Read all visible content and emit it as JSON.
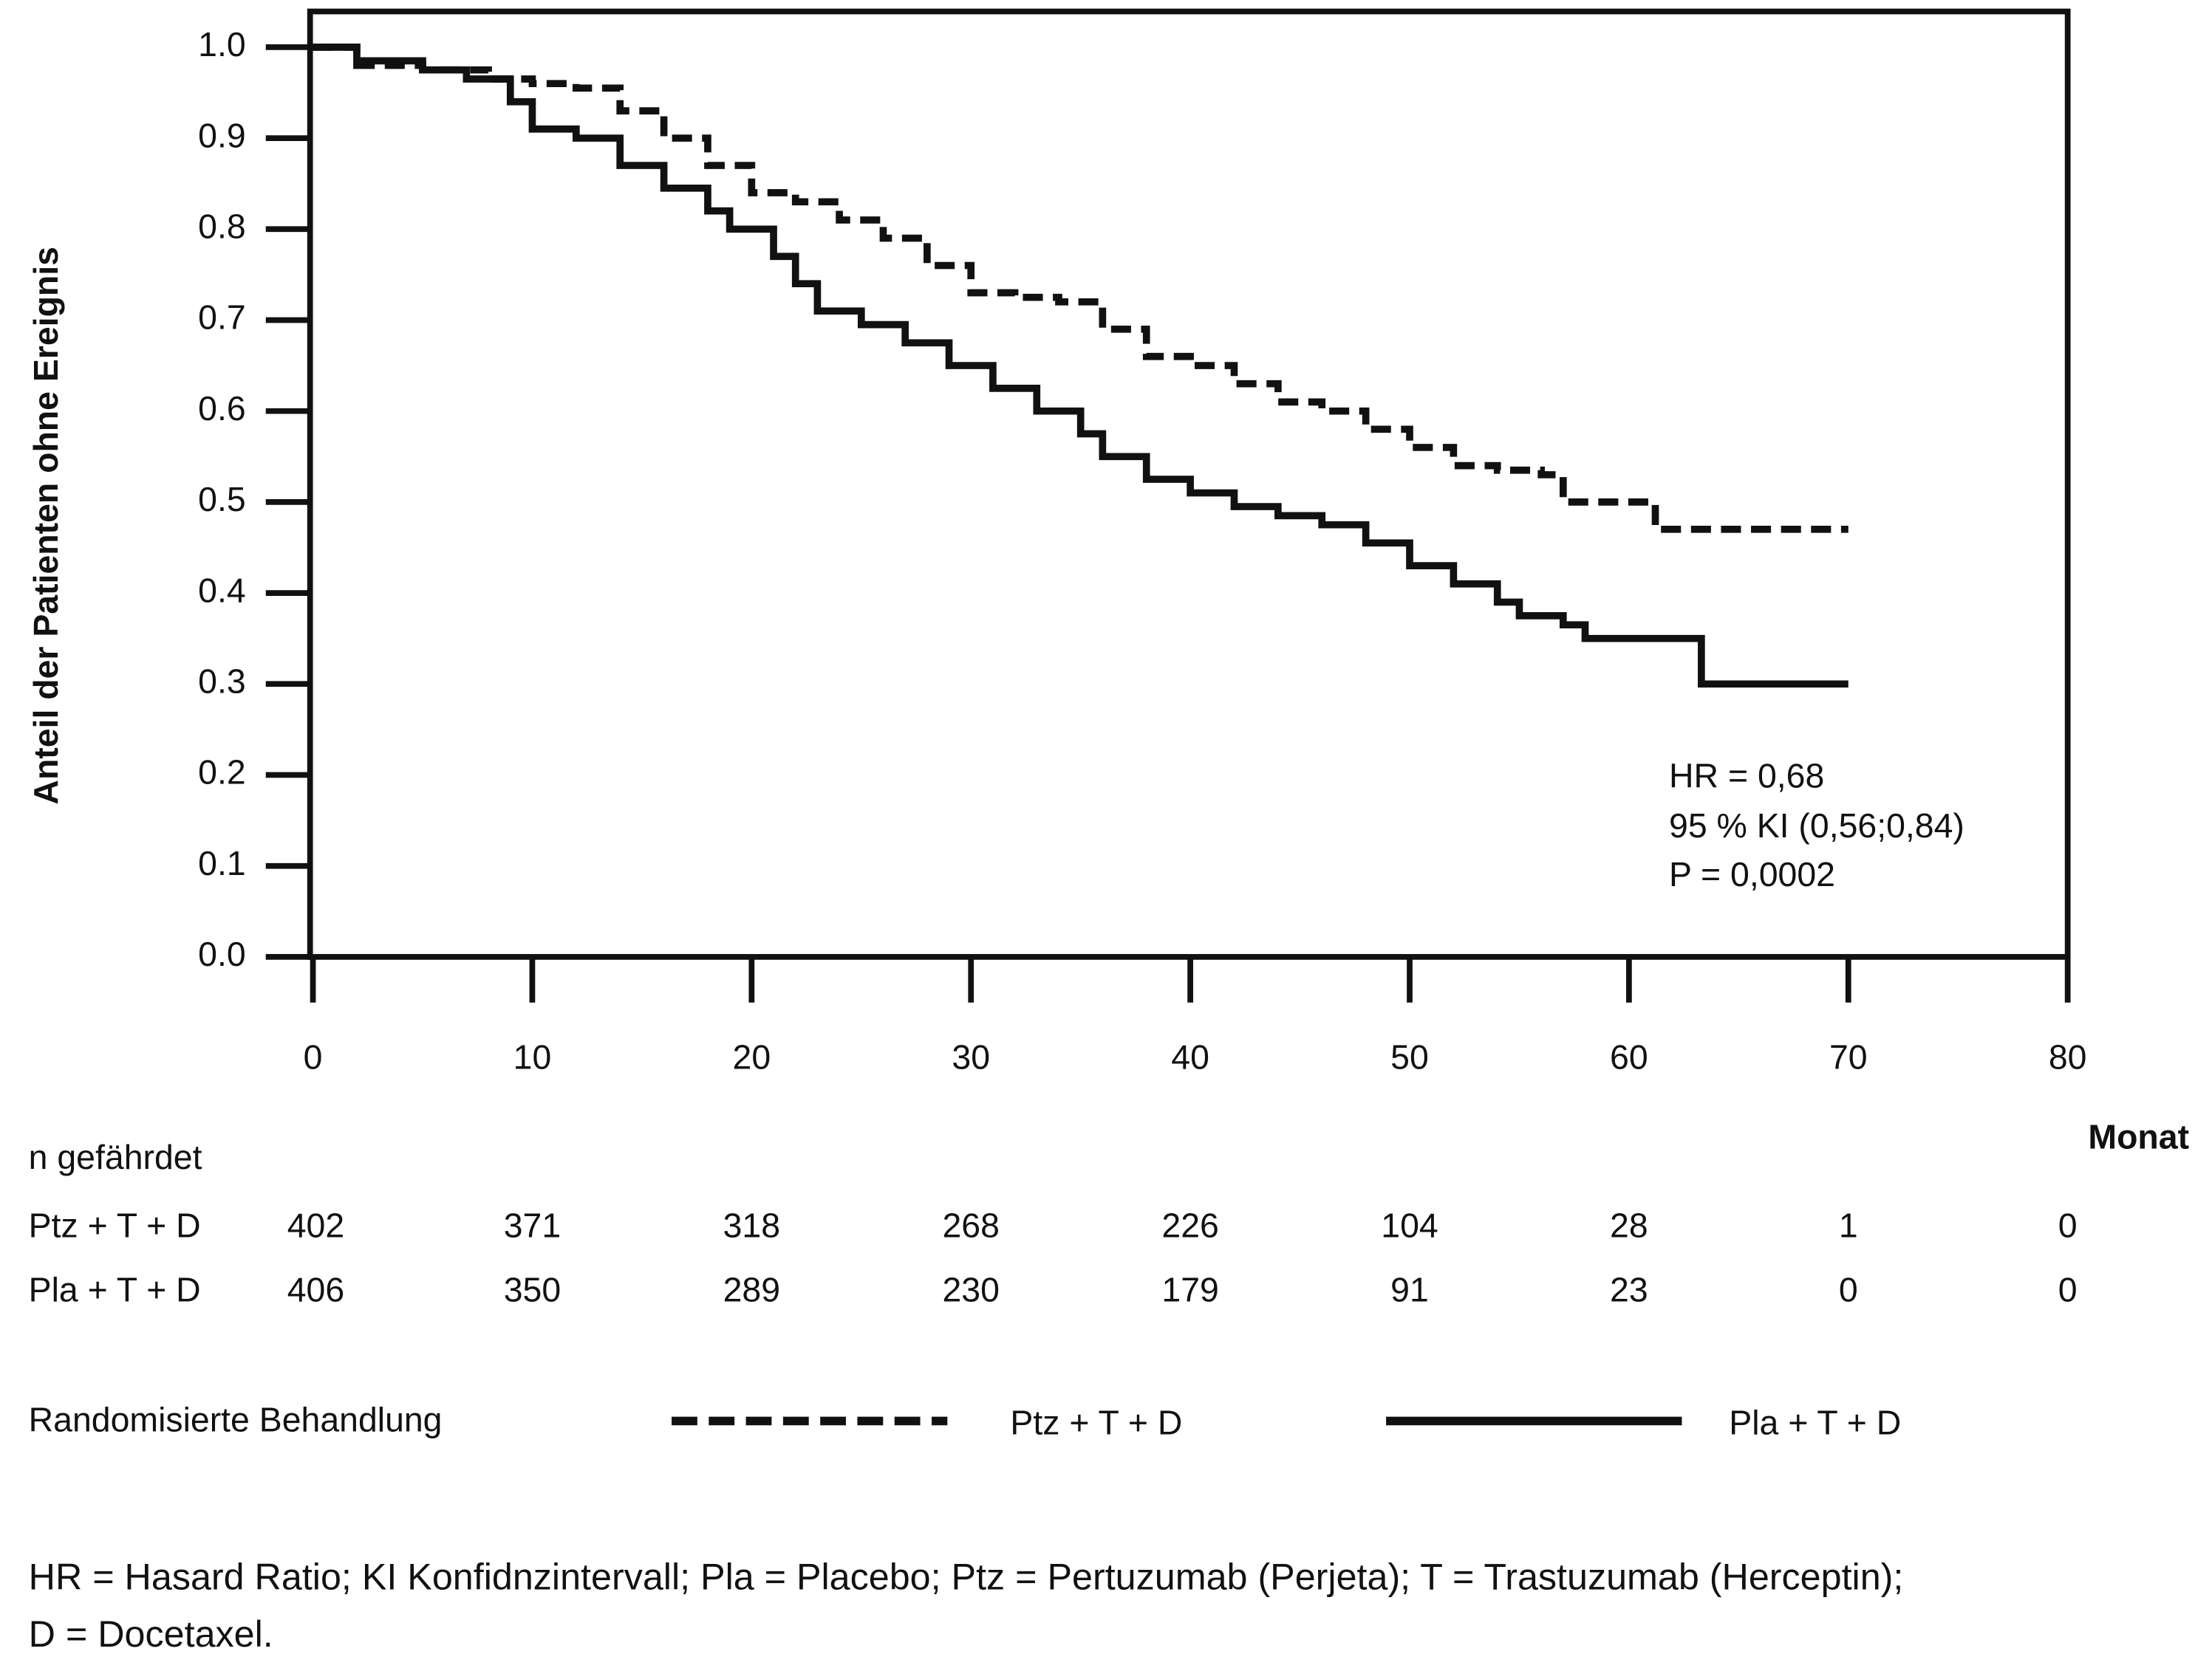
{
  "chart_data": {
    "type": "line",
    "step": true,
    "ylabel": "Anteil der Patienten ohne Ereignis",
    "xlabel": "Monat",
    "xlim": [
      0,
      80
    ],
    "xticks": [
      0,
      10,
      20,
      30,
      40,
      50,
      60,
      70,
      80
    ],
    "ylim": [
      0,
      1
    ],
    "yticks": [
      {
        "value": 0,
        "label": "0.0"
      },
      0.1,
      0.2,
      0.3,
      0.4,
      0.5,
      0.6,
      0.7,
      0.8,
      0.9,
      {
        "value": 1,
        "label": "1.0"
      }
    ],
    "series": [
      {
        "name": "Ptz + T + D",
        "color": "#111111",
        "dashed": true,
        "x": [
          0,
          2,
          5,
          8,
          10,
          12,
          14,
          16,
          18,
          20,
          22,
          24,
          26,
          28,
          30,
          32,
          34,
          36,
          38,
          40,
          42,
          44,
          46,
          48,
          50,
          52,
          54,
          56,
          57,
          61,
          61.2,
          70
        ],
        "values": [
          1.0,
          0.98,
          0.975,
          0.965,
          0.96,
          0.955,
          0.93,
          0.9,
          0.87,
          0.84,
          0.83,
          0.81,
          0.79,
          0.76,
          0.73,
          0.725,
          0.72,
          0.69,
          0.66,
          0.65,
          0.63,
          0.61,
          0.6,
          0.58,
          0.56,
          0.54,
          0.535,
          0.53,
          0.5,
          0.5,
          0.47,
          0.47
        ]
      },
      {
        "name": "Pla + T + D",
        "color": "#111111",
        "dashed": false,
        "x": [
          0,
          2,
          5,
          7,
          9,
          10,
          12,
          14,
          16,
          18,
          19,
          21,
          22,
          23,
          25,
          27,
          29,
          31,
          33,
          35,
          36,
          38,
          40,
          42,
          44,
          46,
          48,
          50,
          52,
          54,
          55,
          57,
          58,
          63.3,
          70
        ],
        "values": [
          1.0,
          0.985,
          0.975,
          0.965,
          0.94,
          0.91,
          0.9,
          0.87,
          0.845,
          0.82,
          0.8,
          0.77,
          0.74,
          0.71,
          0.695,
          0.675,
          0.65,
          0.625,
          0.6,
          0.575,
          0.55,
          0.525,
          0.51,
          0.495,
          0.485,
          0.475,
          0.455,
          0.43,
          0.41,
          0.39,
          0.375,
          0.365,
          0.35,
          0.3,
          0.3
        ]
      }
    ],
    "annotations": [
      "HR = 0,68",
      "95 % KI (0,56;0,84)",
      "P = 0,0002"
    ],
    "risk_table": {
      "title": "n gefährdet",
      "rows": [
        {
          "label": "Ptz + T + D",
          "values": [
            402,
            371,
            318,
            268,
            226,
            104,
            28,
            1,
            0
          ]
        },
        {
          "label": "Pla + T + D",
          "values": [
            406,
            350,
            289,
            230,
            179,
            91,
            23,
            0,
            0
          ]
        }
      ]
    },
    "legend_title": "Randomisierte Behandlung"
  },
  "footnote": [
    "HR = Hasard Ratio; KI Konfidnzintervall; Pla = Placebo; Ptz = Pertuzumab (Perjeta); T = Trastuzumab (Herceptin);",
    "D = Docetaxel."
  ]
}
